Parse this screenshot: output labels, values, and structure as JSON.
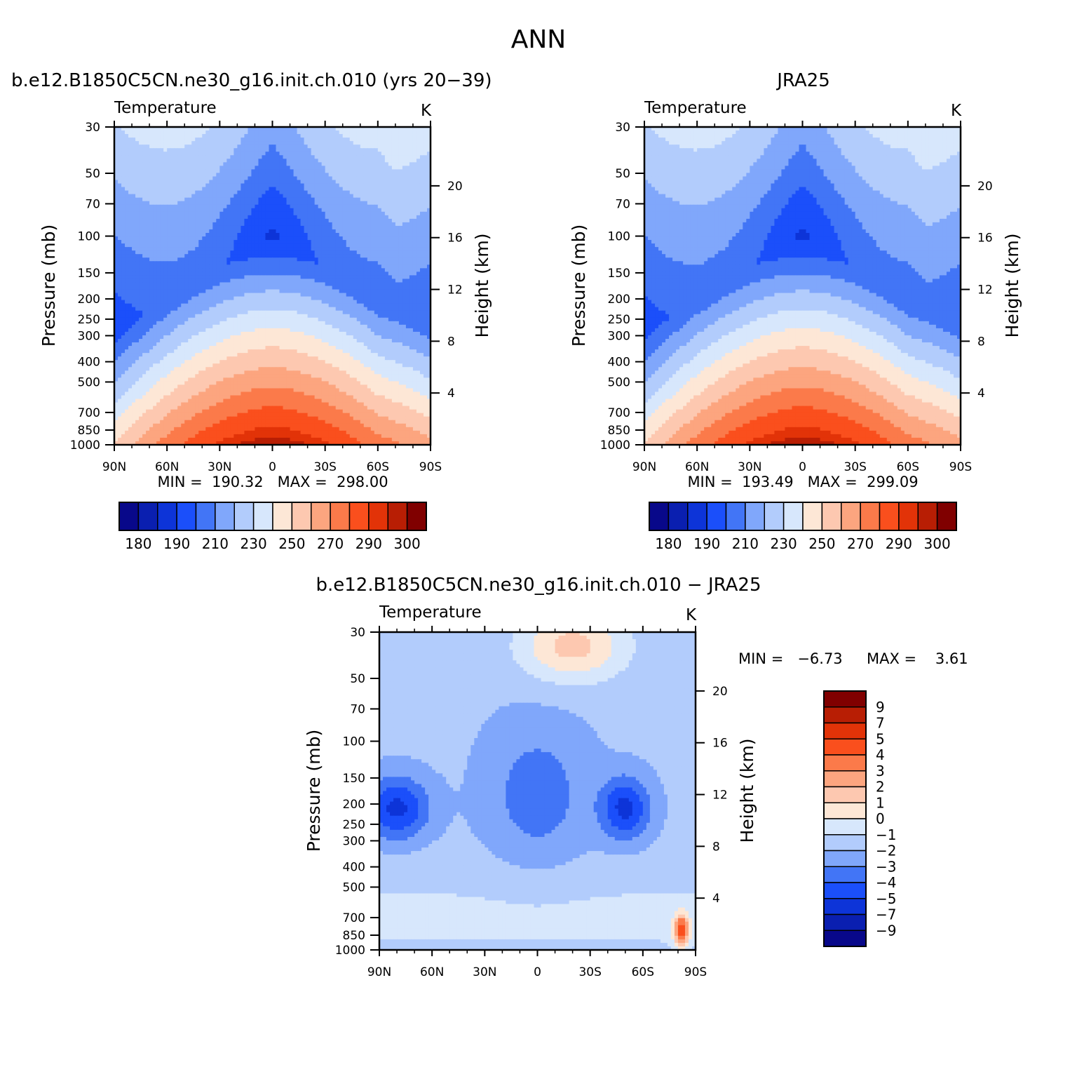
{
  "page": {
    "title": "ANN"
  },
  "palettes": {
    "abs": [
      "#08088a",
      "#0a1fb0",
      "#0d34d8",
      "#1b4ffa",
      "#4275f6",
      "#80a7fb",
      "#b2ccfc",
      "#d7e7fc",
      "#fde7d6",
      "#fdc8b0",
      "#fca57f",
      "#fb7a4a",
      "#fa4f1d",
      "#e23308",
      "#b81e04",
      "#800000"
    ],
    "diff": [
      "#08088a",
      "#0a1fb0",
      "#0d34d8",
      "#1b4ffa",
      "#4275f6",
      "#80a7fb",
      "#b2ccfc",
      "#d7e7fc",
      "#fde7d6",
      "#fdc8b0",
      "#fca57f",
      "#fb7a4a",
      "#fa4f1d",
      "#e23308",
      "#b81e04",
      "#800000"
    ]
  },
  "chart_data": [
    {
      "id": "model",
      "type": "heatmap",
      "title": "b.e12.B1850C5CN.ne30_g16.init.ch.010 (yrs 20−39)",
      "left_label": "Temperature",
      "right_label": "K",
      "ylabel": "Pressure (mb)",
      "ylabel_right": "Height (km)",
      "x_ticks": [
        "90N",
        "60N",
        "30N",
        "0",
        "30S",
        "60S",
        "90S"
      ],
      "y_ticks": [
        "30",
        "50",
        "70",
        "100",
        "150",
        "200",
        "250",
        "300",
        "400",
        "500",
        "700",
        "850",
        "1000"
      ],
      "y_ticks_right": [
        "4",
        "8",
        "12",
        "16",
        "20"
      ],
      "stats": "MIN =  190.32   MAX =  298.00",
      "colorbar_labels": [
        "180",
        "190",
        "210",
        "230",
        "250",
        "270",
        "290",
        "300"
      ],
      "min": 190.32,
      "max": 298.0,
      "levels": [
        175,
        180,
        185,
        190,
        200,
        210,
        220,
        230,
        240,
        250,
        260,
        270,
        280,
        290,
        295,
        300
      ]
    },
    {
      "id": "obs",
      "type": "heatmap",
      "title": "JRA25",
      "left_label": "Temperature",
      "right_label": "K",
      "ylabel": "Pressure (mb)",
      "ylabel_right": "Height (km)",
      "x_ticks": [
        "90N",
        "60N",
        "30N",
        "0",
        "30S",
        "60S",
        "90S"
      ],
      "y_ticks": [
        "30",
        "50",
        "70",
        "100",
        "150",
        "200",
        "250",
        "300",
        "400",
        "500",
        "700",
        "850",
        "1000"
      ],
      "y_ticks_right": [
        "4",
        "8",
        "12",
        "16",
        "20"
      ],
      "stats": "MIN =  193.49   MAX =  299.09",
      "colorbar_labels": [
        "180",
        "190",
        "210",
        "230",
        "250",
        "270",
        "290",
        "300"
      ],
      "min": 193.49,
      "max": 299.09,
      "levels": [
        175,
        180,
        185,
        190,
        200,
        210,
        220,
        230,
        240,
        250,
        260,
        270,
        280,
        290,
        295,
        300
      ]
    },
    {
      "id": "diff",
      "type": "heatmap",
      "title": "b.e12.B1850C5CN.ne30_g16.init.ch.010 − JRA25",
      "left_label": "Temperature",
      "right_label": "K",
      "ylabel": "Pressure (mb)",
      "ylabel_right": "Height (km)",
      "x_ticks": [
        "90N",
        "60N",
        "30N",
        "0",
        "30S",
        "60S",
        "90S"
      ],
      "y_ticks": [
        "30",
        "50",
        "70",
        "100",
        "150",
        "200",
        "250",
        "300",
        "400",
        "500",
        "700",
        "850",
        "1000"
      ],
      "y_ticks_right": [
        "4",
        "8",
        "12",
        "16",
        "20"
      ],
      "stats_min": "MIN =   −6.73",
      "stats_max": "MAX =    3.61",
      "colorbar_labels": [
        "9",
        "7",
        "5",
        "4",
        "3",
        "2",
        "1",
        "0",
        "−1",
        "−2",
        "−3",
        "−4",
        "−5",
        "−7",
        "−9"
      ],
      "min": -6.73,
      "max": 3.61,
      "levels": [
        -11,
        -9,
        -7,
        -5,
        -4,
        -3,
        -2,
        -1,
        0,
        1,
        2,
        3,
        4,
        5,
        7,
        9
      ]
    }
  ]
}
